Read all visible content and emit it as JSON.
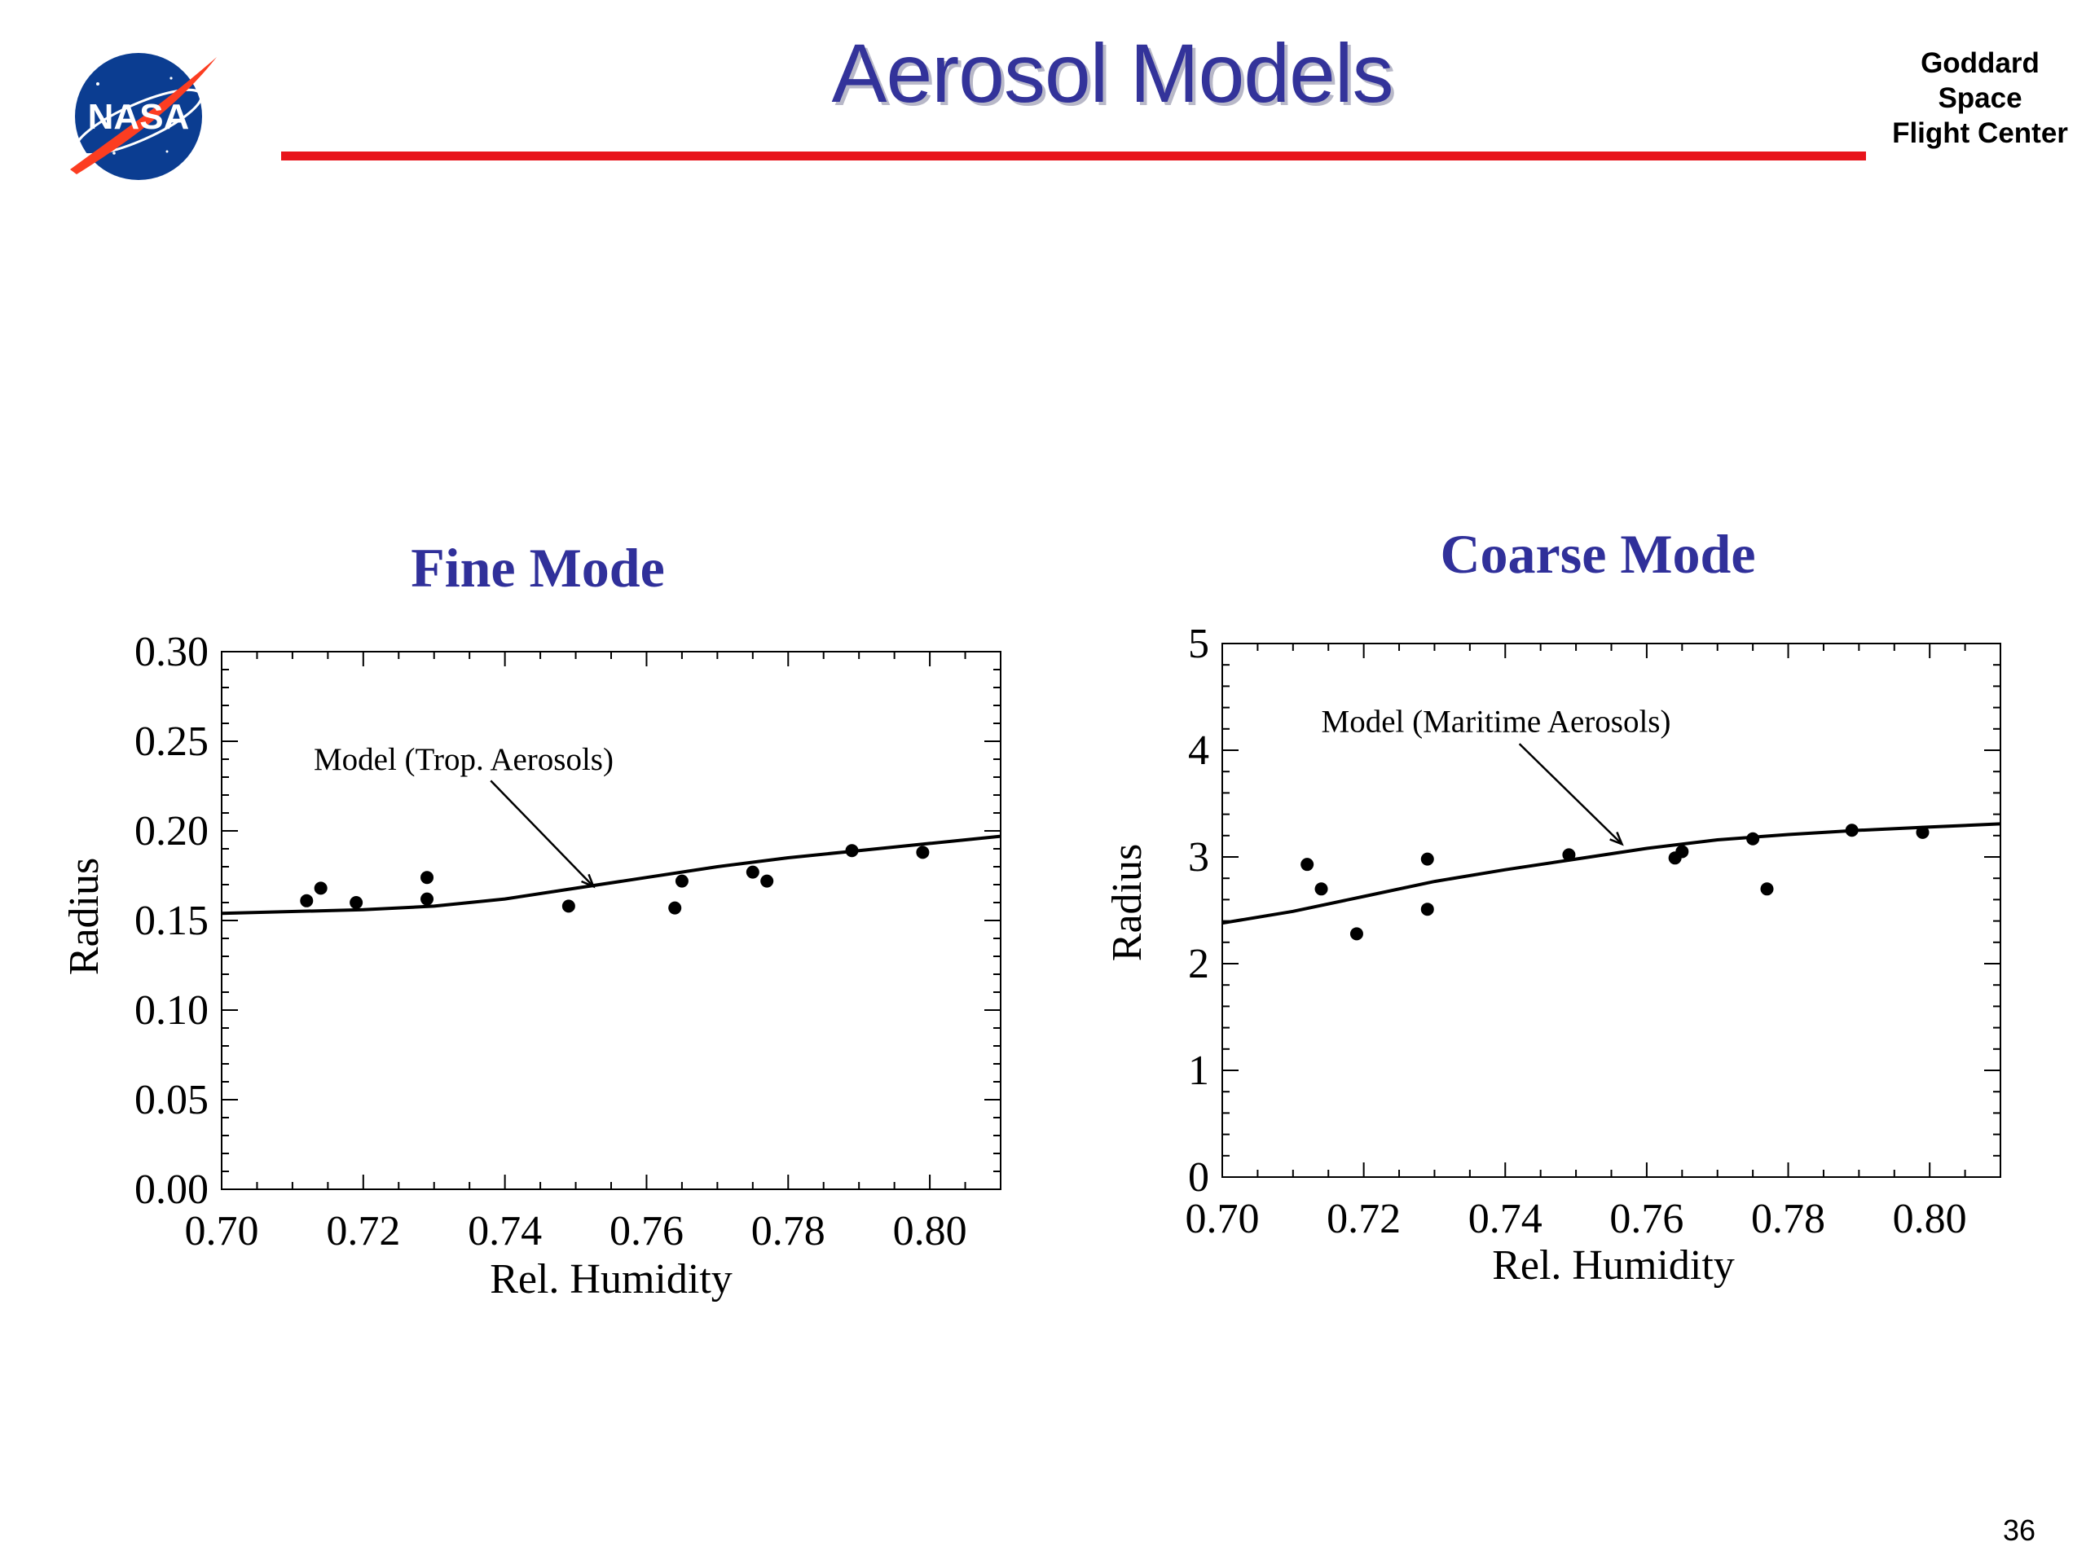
{
  "slide": {
    "title": "Aerosol Models",
    "org_lines": [
      "Goddard",
      "Space",
      "Flight Center"
    ],
    "page_number": "36",
    "logo_text": "NASA"
  },
  "colors": {
    "title": "#33339a",
    "chart_title": "#30309a",
    "rule": "#e8141b",
    "logo_blue": "#0b3d91",
    "logo_red": "#fc3d21"
  },
  "chart_data": [
    {
      "type": "scatter",
      "title": "Fine Mode",
      "xlabel": "Rel. Humidity",
      "ylabel": "Radius",
      "xlim": [
        0.7,
        0.81
      ],
      "ylim": [
        0.0,
        0.3
      ],
      "xticks": [
        "0.70",
        "0.72",
        "0.74",
        "0.76",
        "0.78",
        "0.80"
      ],
      "yticks": [
        "0.00",
        "0.05",
        "0.10",
        "0.15",
        "0.20",
        "0.25",
        "0.30"
      ],
      "grid": false,
      "series": [
        {
          "kind": "points",
          "x": [
            0.712,
            0.714,
            0.719,
            0.729,
            0.729,
            0.749,
            0.764,
            0.765,
            0.775,
            0.777,
            0.789,
            0.799
          ],
          "y": [
            0.161,
            0.168,
            0.16,
            0.174,
            0.162,
            0.158,
            0.157,
            0.172,
            0.177,
            0.172,
            0.189,
            0.188
          ]
        },
        {
          "kind": "line",
          "x": [
            0.7,
            0.72,
            0.73,
            0.74,
            0.75,
            0.76,
            0.77,
            0.78,
            0.79,
            0.8,
            0.81
          ],
          "y": [
            0.154,
            0.156,
            0.158,
            0.162,
            0.168,
            0.174,
            0.18,
            0.185,
            0.189,
            0.193,
            0.197
          ]
        }
      ],
      "annotation": {
        "text": "Model (Trop. Aerosols)",
        "x": 0.713,
        "y": 0.234,
        "arrow_from": [
          0.738,
          0.228
        ],
        "arrow_to": [
          0.7525,
          0.169
        ]
      }
    },
    {
      "type": "scatter",
      "title": "Coarse Mode",
      "xlabel": "Rel. Humidity",
      "ylabel": "Radius",
      "xlim": [
        0.7,
        0.81
      ],
      "ylim": [
        0,
        5
      ],
      "xticks": [
        "0.70",
        "0.72",
        "0.74",
        "0.76",
        "0.78",
        "0.80"
      ],
      "yticks": [
        "0",
        "1",
        "2",
        "3",
        "4",
        "5"
      ],
      "grid": false,
      "series": [
        {
          "kind": "points",
          "x": [
            0.712,
            0.714,
            0.719,
            0.729,
            0.729,
            0.749,
            0.764,
            0.765,
            0.775,
            0.777,
            0.789,
            0.799
          ],
          "y": [
            2.93,
            2.7,
            2.28,
            2.98,
            2.51,
            3.02,
            2.99,
            3.05,
            3.17,
            2.7,
            3.25,
            3.23
          ]
        },
        {
          "kind": "line",
          "x": [
            0.7,
            0.71,
            0.72,
            0.73,
            0.74,
            0.75,
            0.76,
            0.77,
            0.78,
            0.79,
            0.8,
            0.81
          ],
          "y": [
            2.38,
            2.49,
            2.63,
            2.77,
            2.88,
            2.98,
            3.08,
            3.16,
            3.21,
            3.25,
            3.28,
            3.31
          ]
        }
      ],
      "annotation": {
        "text": "Model (Maritime Aerosols)",
        "x": 0.714,
        "y": 4.17,
        "arrow_from": [
          0.742,
          4.06
        ],
        "arrow_to": [
          0.7565,
          3.12
        ]
      }
    }
  ]
}
